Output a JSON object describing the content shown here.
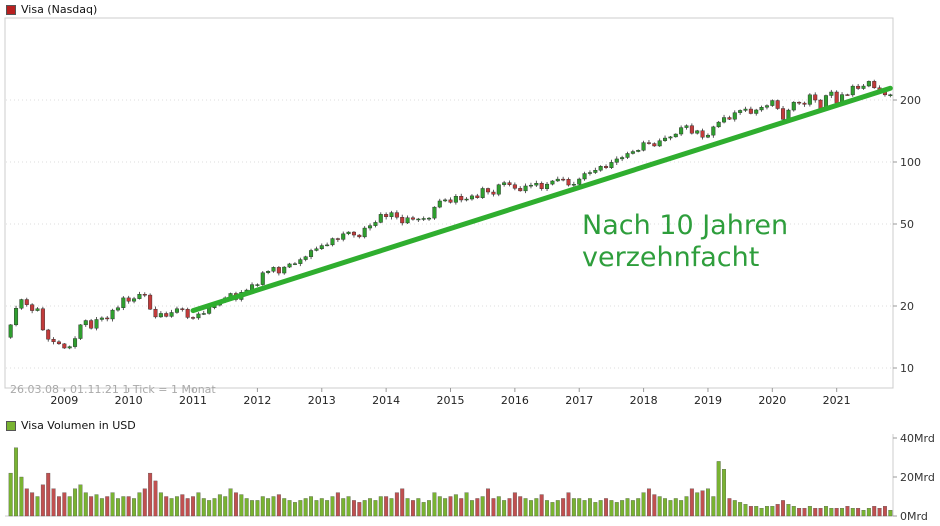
{
  "price_chart": {
    "legend": "Visa (Nasdaq)",
    "legend_color": "#b82020",
    "info": "26.03.08 - 01.11.21   1 Tick = 1 Monat",
    "axis_tick_labels": [
      "200",
      "100",
      "50",
      "20",
      "10"
    ]
  },
  "volume_chart": {
    "legend": "Visa Volumen in USD",
    "legend_color": "#79b332",
    "axis_ticks": [
      {
        "value": 40,
        "label": "40Mrd"
      },
      {
        "value": 20,
        "label": "20Mrd"
      },
      {
        "value": 0,
        "label": "0Mrd"
      }
    ]
  },
  "annotation": {
    "line1": "Nach 10 Jahren",
    "line2": "verzehnfacht",
    "color": "#2e9e3c"
  },
  "x_axis_years": [
    2009,
    2010,
    2011,
    2012,
    2013,
    2014,
    2015,
    2016,
    2017,
    2018,
    2019,
    2020,
    2021
  ],
  "chart_data": {
    "type": "candlestick+volume-bar",
    "title": "Visa (Nasdaq)",
    "period": "26.03.08 - 01.11.21",
    "interval": "1 Tick = 1 Monat",
    "start_month": "2008-03",
    "end_month": "2021-11",
    "price_axis": {
      "scale": "log",
      "ticks": [
        10,
        20,
        50,
        100,
        200
      ]
    },
    "volume_axis": {
      "unit": "Mrd USD",
      "ticks": [
        0,
        20,
        40
      ],
      "max": 40
    },
    "closes": [
      16.2,
      19.5,
      21.5,
      20.3,
      19.0,
      19.4,
      15.3,
      13.8,
      13.4,
      13.1,
      12.5,
      12.7,
      13.9,
      16.2,
      17.0,
      15.6,
      17.2,
      17.5,
      17.3,
      19.1,
      19.6,
      21.9,
      21.1,
      21.7,
      22.8,
      22.6,
      19.3,
      17.7,
      18.4,
      17.8,
      18.6,
      19.4,
      19.3,
      17.6,
      17.5,
      18.3,
      18.4,
      19.6,
      20.2,
      21.1,
      21.9,
      23.0,
      21.5,
      23.3,
      23.9,
      25.4,
      25.4,
      29.0,
      29.5,
      30.8,
      28.9,
      30.9,
      32.0,
      32.1,
      33.6,
      34.7,
      37.2,
      37.9,
      39.3,
      39.6,
      42.5,
      42.1,
      44.8,
      45.7,
      44.2,
      43.3,
      47.8,
      49.1,
      50.9,
      55.7,
      54.2,
      56.8,
      53.9,
      50.6,
      53.6,
      52.7,
      52.9,
      53.2,
      53.4,
      60.4,
      64.7,
      65.5,
      63.7,
      68.2,
      65.4,
      66.1,
      68.5,
      67.1,
      74.4,
      71.5,
      69.7,
      77.6,
      79.4,
      77.6,
      74.5,
      72.4,
      76.5,
      77.2,
      78.9,
      74.2,
      78.1,
      80.9,
      82.6,
      82.5,
      77.3,
      78.0,
      82.7,
      87.9,
      88.9,
      91.2,
      95.3,
      93.8,
      99.6,
      103.5,
      105.2,
      110.0,
      112.4,
      114.0,
      124.2,
      122.9,
      119.6,
      126.9,
      130.7,
      132.4,
      136.7,
      146.9,
      150.1,
      137.9,
      141.8,
      131.9,
      135.0,
      148.1,
      156.2,
      164.4,
      161.3,
      173.6,
      178.0,
      180.8,
      172.0,
      178.9,
      184.5,
      187.9,
      198.8,
      181.8,
      161.1,
      178.7,
      195.2,
      193.2,
      190.4,
      211.9,
      199.9,
      181.7,
      210.3,
      218.7,
      193.2,
      212.4,
      211.7,
      233.5,
      227.3,
      233.8,
      246.4,
      229.1,
      222.8,
      211.8,
      212.0
    ],
    "volumes_mrd": [
      22,
      35,
      20,
      14,
      12,
      10,
      16,
      22,
      14,
      10,
      12,
      10,
      14,
      16,
      12,
      10,
      11,
      9,
      10,
      12,
      9,
      10,
      10,
      9,
      12,
      14,
      22,
      18,
      12,
      10,
      9,
      10,
      11,
      9,
      10,
      12,
      9,
      8,
      9,
      11,
      10,
      14,
      12,
      11,
      9,
      8,
      8,
      10,
      9,
      10,
      11,
      9,
      8,
      7,
      8,
      9,
      10,
      8,
      9,
      8,
      10,
      12,
      9,
      10,
      8,
      7,
      8,
      9,
      8,
      10,
      10,
      9,
      12,
      14,
      9,
      8,
      9,
      7,
      8,
      12,
      10,
      9,
      10,
      11,
      9,
      12,
      8,
      9,
      10,
      14,
      9,
      10,
      8,
      9,
      12,
      10,
      9,
      8,
      9,
      11,
      8,
      7,
      8,
      9,
      12,
      9,
      9,
      8,
      9,
      7,
      8,
      9,
      8,
      7,
      8,
      9,
      8,
      9,
      12,
      14,
      11,
      10,
      9,
      8,
      9,
      8,
      10,
      14,
      12,
      13,
      14,
      10,
      28,
      24,
      9,
      8,
      7,
      6,
      5,
      5,
      4,
      5,
      5,
      6,
      8,
      6,
      5,
      4,
      4,
      5,
      4,
      4,
      5,
      4,
      4,
      4,
      5,
      4,
      4,
      3,
      4,
      5,
      4,
      5,
      3
    ],
    "trendline": {
      "from_month": "2011-01",
      "from_price": 19,
      "to_month": "2021-11",
      "to_price": 228,
      "color": "#2fae2f",
      "label": "Nach 10 Jahren verzehnfacht"
    },
    "colors": {
      "up": "#2f9e2f",
      "down": "#c23b3b",
      "vol_up": "#79b332",
      "vol_down": "#c05050"
    }
  }
}
